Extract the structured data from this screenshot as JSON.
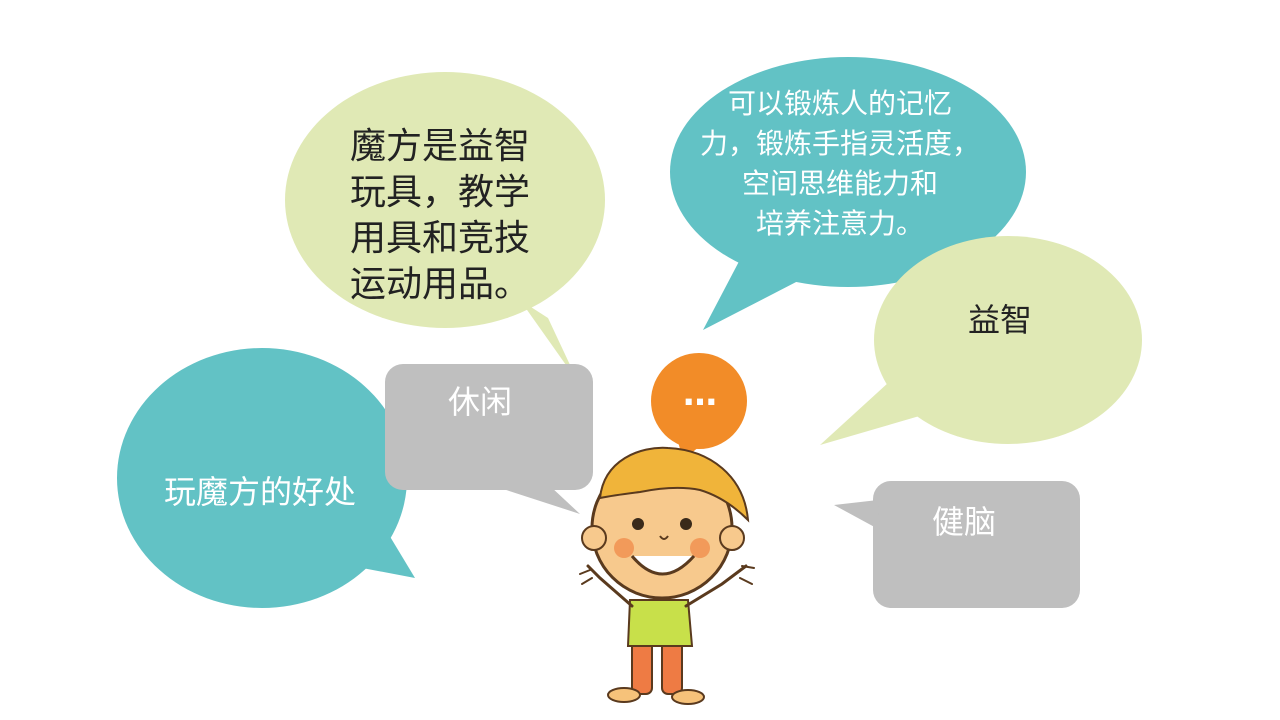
{
  "colors": {
    "green_bubble": "#e0e9b5",
    "teal_bubble": "#62c2c5",
    "gray_bubble": "#bfbfbf",
    "orange_bubble": "#f28c28",
    "dark_text": "#222222",
    "light_text": "#ffffff"
  },
  "bubbles": {
    "top_left_green": "魔方是益智\n玩具，教学\n用具和竞技\n运动用品。",
    "top_right_teal": "可以锻炼人的记忆\n力，锻炼手指灵活度，\n空间思维能力和\n培养注意力。",
    "right_green": "益智",
    "left_teal": "玩魔方的好处",
    "gray_leisure": "休闲",
    "gray_brain": "健脑",
    "orange_dots": "…"
  },
  "illustration": {
    "icon": "cartoon-child-icon"
  }
}
